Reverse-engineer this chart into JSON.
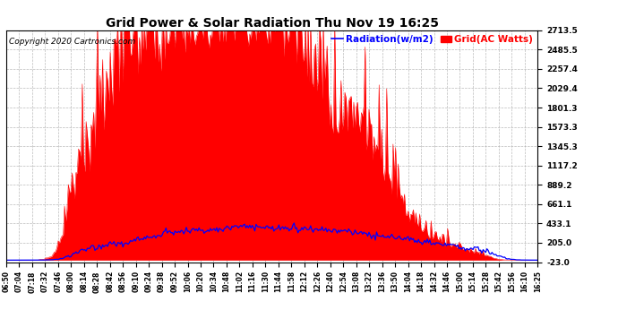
{
  "title": "Grid Power & Solar Radiation Thu Nov 19 16:25",
  "copyright": "Copyright 2020 Cartronics.com",
  "legend_radiation": "Radiation(w/m2)",
  "legend_grid": "Grid(AC Watts)",
  "yticks": [
    -23.0,
    205.0,
    433.1,
    661.1,
    889.2,
    1117.2,
    1345.3,
    1573.3,
    1801.3,
    2029.4,
    2257.4,
    2485.5,
    2713.5
  ],
  "ymin": -23.0,
  "ymax": 2713.5,
  "bg_color": "#ffffff",
  "plot_bg_color": "#ffffff",
  "grid_color": "#aaaaaa",
  "bar_color": "#ff0000",
  "line_color": "#0000ff",
  "title_color": "#000000",
  "copyright_color": "#000000",
  "xtick_labels": [
    "06:50",
    "07:04",
    "07:18",
    "07:32",
    "07:46",
    "08:00",
    "08:14",
    "08:28",
    "08:42",
    "08:56",
    "09:10",
    "09:24",
    "09:38",
    "09:52",
    "10:06",
    "10:20",
    "10:34",
    "10:48",
    "11:02",
    "11:16",
    "11:30",
    "11:44",
    "11:58",
    "12:12",
    "12:26",
    "12:40",
    "12:54",
    "13:08",
    "13:22",
    "13:36",
    "13:50",
    "14:04",
    "14:18",
    "14:32",
    "14:46",
    "15:00",
    "15:14",
    "15:28",
    "15:42",
    "15:56",
    "16:10",
    "16:25"
  ],
  "num_points": 420
}
